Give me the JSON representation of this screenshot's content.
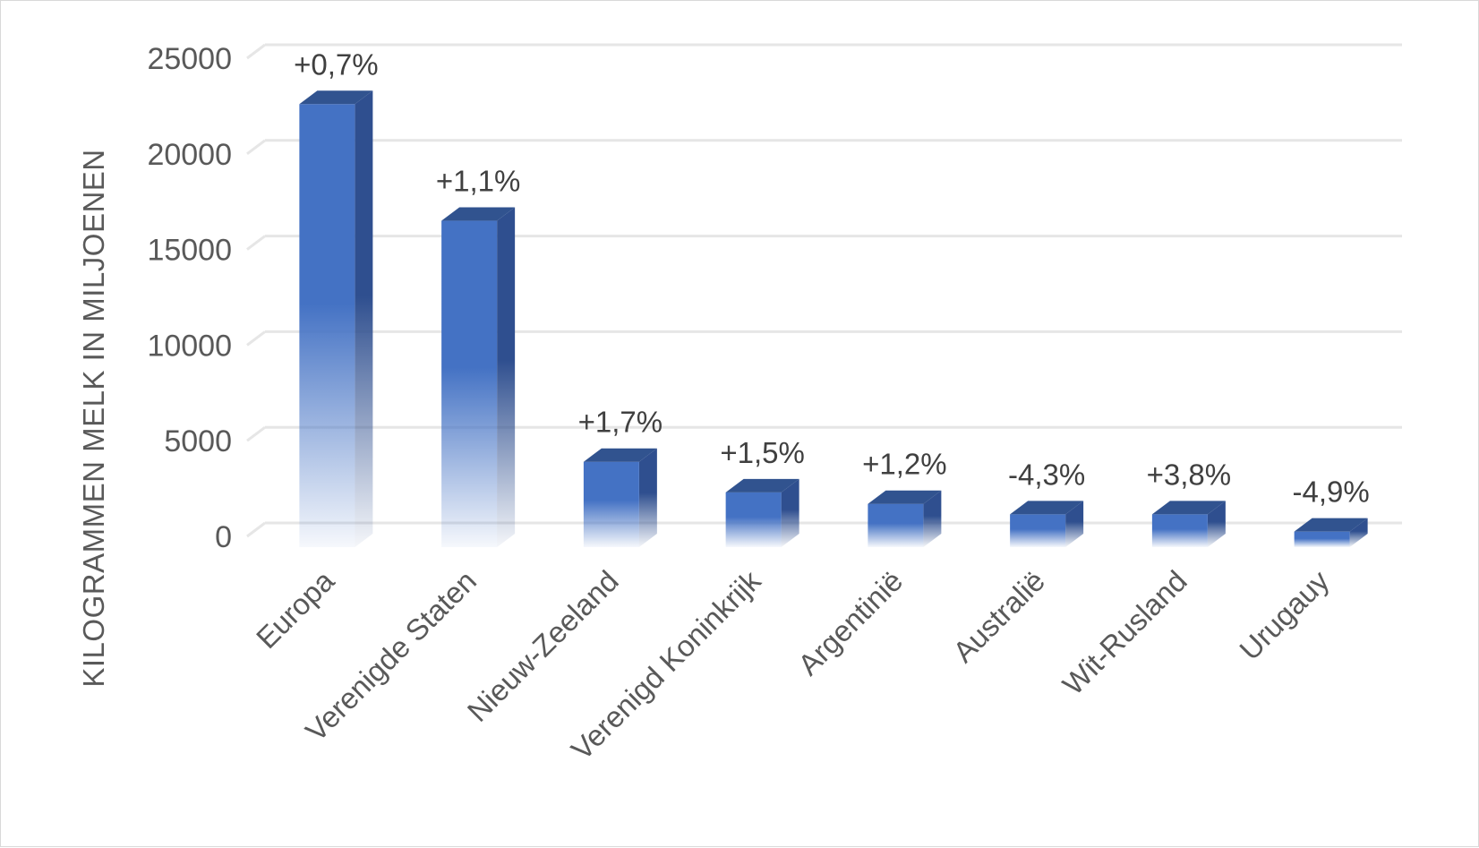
{
  "chart_data": {
    "type": "bar",
    "style": "3d-column",
    "title": "",
    "xlabel": "",
    "ylabel": "KILOGRAMMEN MELK IN MILJOENEN",
    "categories": [
      "Europa",
      "Verenigde Staten",
      "Nieuw-Zeeland",
      "Verenigd Koninkrijk",
      "Argentinië",
      "Australië",
      "Wit-Rusland",
      "Urugauy"
    ],
    "values": [
      22600,
      16500,
      3900,
      2300,
      1700,
      1150,
      1150,
      250
    ],
    "data_labels": [
      "+0,7%",
      "+1,1%",
      "+1,7%",
      "+1,5%",
      "+1,2%",
      "-4,3%",
      "+3,8%",
      "-4,9%"
    ],
    "ylim": [
      0,
      25000
    ],
    "yticks": [
      0,
      5000,
      10000,
      15000,
      20000,
      25000
    ],
    "grid": true,
    "legend": "none",
    "colors": {
      "front": "#4472c4",
      "side": "#2f4f8f",
      "top": "#31538f",
      "gridline": "#e6e6e6",
      "text": "#595959"
    }
  }
}
